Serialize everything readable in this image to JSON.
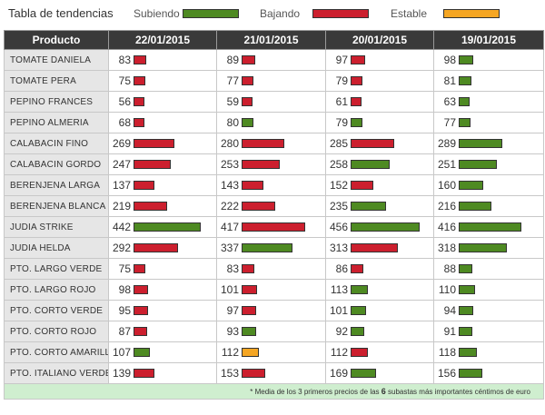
{
  "legend": {
    "title": "Tabla de tendencias",
    "up_label": "Subiendo",
    "down_label": "Bajando",
    "stable_label": "Estable"
  },
  "colors": {
    "up": "#4e8a22",
    "down": "#cc1f2e",
    "stable": "#f5a623"
  },
  "table": {
    "headers": [
      "Producto",
      "22/01/2015",
      "21/01/2015",
      "20/01/2015",
      "19/01/2015"
    ],
    "scale_max": 456,
    "rows": [
      {
        "product": "TOMATE DANIELA",
        "cells": [
          {
            "v": 83,
            "t": "down"
          },
          {
            "v": 89,
            "t": "down"
          },
          {
            "v": 97,
            "t": "down"
          },
          {
            "v": 98,
            "t": "up"
          }
        ]
      },
      {
        "product": "TOMATE PERA",
        "cells": [
          {
            "v": 75,
            "t": "down"
          },
          {
            "v": 77,
            "t": "down"
          },
          {
            "v": 79,
            "t": "down"
          },
          {
            "v": 81,
            "t": "up"
          }
        ]
      },
      {
        "product": "PEPINO FRANCES",
        "cells": [
          {
            "v": 56,
            "t": "down"
          },
          {
            "v": 59,
            "t": "down"
          },
          {
            "v": 61,
            "t": "down"
          },
          {
            "v": 63,
            "t": "up"
          }
        ]
      },
      {
        "product": "PEPINO ALMERIA",
        "cells": [
          {
            "v": 68,
            "t": "down"
          },
          {
            "v": 80,
            "t": "up"
          },
          {
            "v": 79,
            "t": "up"
          },
          {
            "v": 77,
            "t": "up"
          }
        ]
      },
      {
        "product": "CALABACIN FINO",
        "cells": [
          {
            "v": 269,
            "t": "down"
          },
          {
            "v": 280,
            "t": "down"
          },
          {
            "v": 285,
            "t": "down"
          },
          {
            "v": 289,
            "t": "up"
          }
        ]
      },
      {
        "product": "CALABACIN GORDO",
        "cells": [
          {
            "v": 247,
            "t": "down"
          },
          {
            "v": 253,
            "t": "down"
          },
          {
            "v": 258,
            "t": "up"
          },
          {
            "v": 251,
            "t": "up"
          }
        ]
      },
      {
        "product": "BERENJENA LARGA",
        "cells": [
          {
            "v": 137,
            "t": "down"
          },
          {
            "v": 143,
            "t": "down"
          },
          {
            "v": 152,
            "t": "down"
          },
          {
            "v": 160,
            "t": "up"
          }
        ]
      },
      {
        "product": "BERENJENA BLANCA",
        "cells": [
          {
            "v": 219,
            "t": "down"
          },
          {
            "v": 222,
            "t": "down"
          },
          {
            "v": 235,
            "t": "up"
          },
          {
            "v": 216,
            "t": "up"
          }
        ]
      },
      {
        "product": "JUDIA STRIKE",
        "cells": [
          {
            "v": 442,
            "t": "up"
          },
          {
            "v": 417,
            "t": "down"
          },
          {
            "v": 456,
            "t": "up"
          },
          {
            "v": 416,
            "t": "up"
          }
        ]
      },
      {
        "product": "JUDIA HELDA",
        "cells": [
          {
            "v": 292,
            "t": "down"
          },
          {
            "v": 337,
            "t": "up"
          },
          {
            "v": 313,
            "t": "down"
          },
          {
            "v": 318,
            "t": "up"
          }
        ]
      },
      {
        "product": "PTO. LARGO VERDE",
        "cells": [
          {
            "v": 75,
            "t": "down"
          },
          {
            "v": 83,
            "t": "down"
          },
          {
            "v": 86,
            "t": "down"
          },
          {
            "v": 88,
            "t": "up"
          }
        ]
      },
      {
        "product": "PTO. LARGO ROJO",
        "cells": [
          {
            "v": 98,
            "t": "down"
          },
          {
            "v": 101,
            "t": "down"
          },
          {
            "v": 113,
            "t": "up"
          },
          {
            "v": 110,
            "t": "up"
          }
        ]
      },
      {
        "product": "PTO. CORTO VERDE",
        "cells": [
          {
            "v": 95,
            "t": "down"
          },
          {
            "v": 97,
            "t": "down"
          },
          {
            "v": 101,
            "t": "up"
          },
          {
            "v": 94,
            "t": "up"
          }
        ]
      },
      {
        "product": "PTO. CORTO ROJO",
        "cells": [
          {
            "v": 87,
            "t": "down"
          },
          {
            "v": 93,
            "t": "up"
          },
          {
            "v": 92,
            "t": "up"
          },
          {
            "v": 91,
            "t": "up"
          }
        ]
      },
      {
        "product": "PTO. CORTO AMARILLO",
        "cells": [
          {
            "v": 107,
            "t": "up"
          },
          {
            "v": 112,
            "t": "stable"
          },
          {
            "v": 112,
            "t": "down"
          },
          {
            "v": 118,
            "t": "up"
          }
        ]
      },
      {
        "product": "PTO. ITALIANO VERDE",
        "cells": [
          {
            "v": 139,
            "t": "down"
          },
          {
            "v": 153,
            "t": "down"
          },
          {
            "v": 169,
            "t": "up"
          },
          {
            "v": 156,
            "t": "up"
          }
        ]
      }
    ]
  },
  "footer": {
    "pre": "* Media de los 3 primeros precios de las",
    "count": "6",
    "post": "subastas más importantes céntimos de euro"
  }
}
